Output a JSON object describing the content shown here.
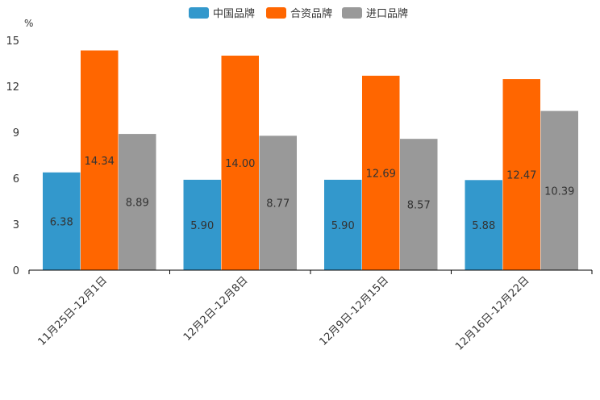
{
  "chart_data": {
    "type": "bar",
    "title": "",
    "xlabel": "",
    "ylabel": "%",
    "ylim": [
      0,
      15
    ],
    "yticks": [
      0,
      3,
      6,
      9,
      12,
      15
    ],
    "categories": [
      "11月25日-12月1日",
      "12月2日-12月8日",
      "12月9日-12月15日",
      "12月16日-12月22日"
    ],
    "series": [
      {
        "name": "中国品牌",
        "color": "#3398cc",
        "values": [
          6.38,
          5.9,
          5.9,
          5.88
        ],
        "labels": [
          "6.38",
          "5.90",
          "5.90",
          "5.88"
        ]
      },
      {
        "name": "合资品牌",
        "color": "#ff6600",
        "values": [
          14.34,
          14.0,
          12.69,
          12.47
        ],
        "labels": [
          "14.34",
          "14.00",
          "12.69",
          "12.47"
        ]
      },
      {
        "name": "进口品牌",
        "color": "#999999",
        "values": [
          8.89,
          8.77,
          8.57,
          10.39
        ],
        "labels": [
          "8.89",
          "8.77",
          "8.57",
          "10.39"
        ]
      }
    ],
    "legend_position": "top-center",
    "grid": false
  }
}
